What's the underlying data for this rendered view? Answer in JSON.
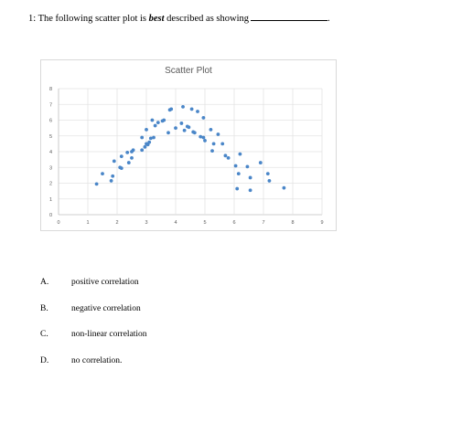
{
  "question": {
    "prefix": "1:  The following scatter plot is ",
    "emphasis": "best",
    "suffix": " described as showing",
    "end": "."
  },
  "choices": [
    {
      "letter": "A.",
      "text": "positive correlation"
    },
    {
      "letter": "B.",
      "text": "negative correlation"
    },
    {
      "letter": "C.",
      "text": "non-linear correlation"
    },
    {
      "letter": "D.",
      "text": "no correlation."
    }
  ],
  "chart_data": {
    "type": "scatter",
    "title": "Scatter Plot",
    "xlim": [
      0,
      9
    ],
    "ylim": [
      0,
      8
    ],
    "x_ticks": [
      0,
      1,
      2,
      3,
      4,
      5,
      6,
      7,
      8,
      9
    ],
    "y_ticks": [
      0,
      1,
      2,
      3,
      4,
      5,
      6,
      7,
      8
    ],
    "grid": true,
    "point_color": "#4a86c8",
    "points": [
      [
        1.3,
        1.95
      ],
      [
        1.5,
        2.6
      ],
      [
        1.8,
        2.15
      ],
      [
        1.85,
        2.45
      ],
      [
        1.9,
        3.4
      ],
      [
        2.1,
        3.0
      ],
      [
        2.15,
        2.95
      ],
      [
        2.15,
        3.7
      ],
      [
        2.35,
        3.95
      ],
      [
        2.4,
        3.3
      ],
      [
        2.5,
        3.6
      ],
      [
        2.5,
        4.0
      ],
      [
        2.55,
        4.1
      ],
      [
        2.85,
        4.1
      ],
      [
        2.85,
        4.9
      ],
      [
        2.95,
        4.3
      ],
      [
        3.0,
        4.5
      ],
      [
        3.0,
        5.4
      ],
      [
        3.05,
        4.45
      ],
      [
        3.1,
        4.6
      ],
      [
        3.15,
        4.85
      ],
      [
        3.2,
        6.0
      ],
      [
        3.25,
        4.9
      ],
      [
        3.3,
        5.65
      ],
      [
        3.4,
        5.85
      ],
      [
        3.6,
        6.0
      ],
      [
        3.55,
        5.95
      ],
      [
        3.75,
        5.2
      ],
      [
        3.8,
        6.65
      ],
      [
        3.85,
        6.7
      ],
      [
        4.0,
        5.5
      ],
      [
        4.2,
        5.8
      ],
      [
        4.25,
        6.85
      ],
      [
        4.3,
        5.35
      ],
      [
        4.4,
        5.6
      ],
      [
        4.45,
        5.55
      ],
      [
        4.55,
        6.7
      ],
      [
        4.6,
        5.25
      ],
      [
        4.65,
        5.2
      ],
      [
        4.75,
        6.55
      ],
      [
        4.85,
        4.95
      ],
      [
        4.95,
        6.15
      ],
      [
        4.95,
        4.9
      ],
      [
        5.0,
        4.7
      ],
      [
        5.2,
        5.4
      ],
      [
        5.25,
        4.05
      ],
      [
        5.3,
        4.5
      ],
      [
        5.45,
        5.1
      ],
      [
        5.6,
        4.5
      ],
      [
        5.7,
        3.75
      ],
      [
        5.8,
        3.6
      ],
      [
        6.05,
        3.1
      ],
      [
        6.1,
        1.65
      ],
      [
        6.15,
        2.6
      ],
      [
        6.2,
        3.85
      ],
      [
        6.45,
        3.05
      ],
      [
        6.55,
        1.55
      ],
      [
        6.55,
        2.35
      ],
      [
        6.9,
        3.3
      ],
      [
        7.15,
        2.6
      ],
      [
        7.2,
        2.15
      ],
      [
        7.7,
        1.7
      ]
    ]
  }
}
